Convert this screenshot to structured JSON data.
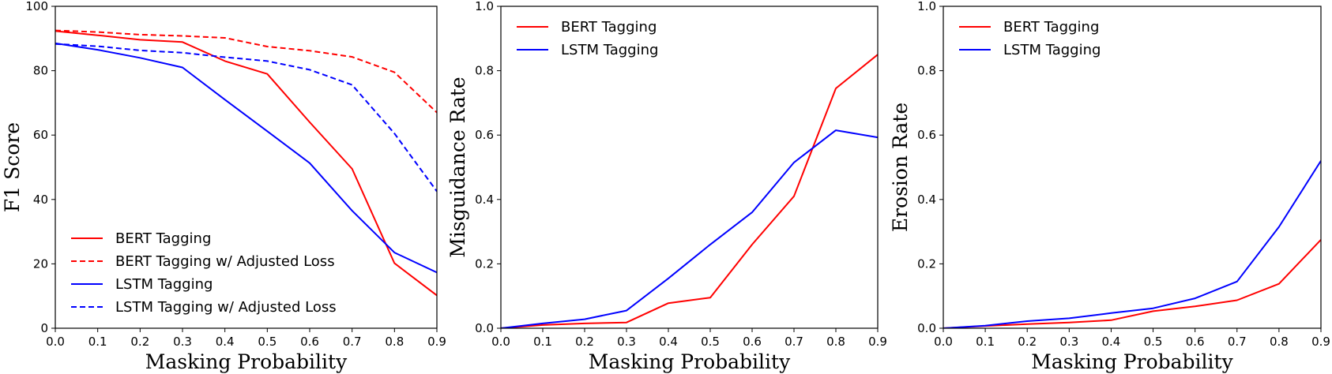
{
  "chart_data": [
    {
      "type": "line",
      "x": [
        0.0,
        0.1,
        0.2,
        0.3,
        0.4,
        0.5,
        0.6,
        0.7,
        0.8,
        0.9
      ],
      "xlabel": "Masking Probability",
      "ylabel": "F1 Score",
      "xlim": [
        0.0,
        0.9
      ],
      "ylim": [
        0,
        100
      ],
      "xticks": [
        "0.0",
        "0.1",
        "0.2",
        "0.3",
        "0.4",
        "0.5",
        "0.6",
        "0.7",
        "0.8",
        "0.9"
      ],
      "yticks": [
        "0",
        "20",
        "40",
        "60",
        "80",
        "100"
      ],
      "grid": false,
      "legend": "lower-left",
      "series": [
        {
          "name": "BERT Tagging",
          "color": "#ff0000",
          "dash": "solid",
          "values": [
            92.3,
            91.0,
            89.6,
            88.9,
            83.0,
            79.0,
            64.0,
            49.5,
            20.2,
            10.2
          ]
        },
        {
          "name": "BERT Tagging w/ Adjusted Loss",
          "color": "#ff0000",
          "dash": "dashed",
          "values": [
            92.5,
            92.0,
            91.2,
            90.8,
            90.2,
            87.5,
            86.2,
            84.3,
            79.5,
            67.0
          ]
        },
        {
          "name": "LSTM Tagging",
          "color": "#0000ff",
          "dash": "solid",
          "values": [
            88.5,
            86.5,
            84.0,
            81.0,
            71.0,
            61.2,
            51.3,
            36.5,
            23.5,
            17.3
          ]
        },
        {
          "name": "LSTM Tagging w/ Adjusted Loss",
          "color": "#0000ff",
          "dash": "dashed",
          "values": [
            88.3,
            87.6,
            86.3,
            85.6,
            84.2,
            83.0,
            80.3,
            75.6,
            60.5,
            42.5
          ]
        }
      ]
    },
    {
      "type": "line",
      "x": [
        0.0,
        0.1,
        0.2,
        0.3,
        0.4,
        0.5,
        0.6,
        0.7,
        0.8,
        0.9
      ],
      "xlabel": "Masking Probability",
      "ylabel": "Misguidance Rate",
      "xlim": [
        0.0,
        0.9
      ],
      "ylim": [
        0.0,
        1.0
      ],
      "xticks": [
        "0.0",
        "0.1",
        "0.2",
        "0.3",
        "0.4",
        "0.5",
        "0.6",
        "0.7",
        "0.8",
        "0.9"
      ],
      "yticks": [
        "0.0",
        "0.2",
        "0.4",
        "0.6",
        "0.8",
        "1.0"
      ],
      "grid": false,
      "legend": "top-left",
      "series": [
        {
          "name": "BERT Tagging",
          "color": "#ff0000",
          "dash": "solid",
          "values": [
            0.0,
            0.01,
            0.015,
            0.018,
            0.078,
            0.095,
            0.26,
            0.41,
            0.745,
            0.85
          ]
        },
        {
          "name": "LSTM Tagging",
          "color": "#0000ff",
          "dash": "solid",
          "values": [
            0.0,
            0.015,
            0.028,
            0.055,
            0.155,
            0.26,
            0.36,
            0.515,
            0.615,
            0.593
          ]
        }
      ]
    },
    {
      "type": "line",
      "x": [
        0.0,
        0.1,
        0.2,
        0.3,
        0.4,
        0.5,
        0.6,
        0.7,
        0.8,
        0.9
      ],
      "xlabel": "Masking Probability",
      "ylabel": "Erosion Rate",
      "xlim": [
        0.0,
        0.9
      ],
      "ylim": [
        0.0,
        1.0
      ],
      "xticks": [
        "0.0",
        "0.1",
        "0.2",
        "0.3",
        "0.4",
        "0.5",
        "0.6",
        "0.7",
        "0.8",
        "0.9"
      ],
      "yticks": [
        "0.0",
        "0.2",
        "0.4",
        "0.6",
        "0.8",
        "1.0"
      ],
      "grid": false,
      "legend": "top-left",
      "series": [
        {
          "name": "BERT Tagging",
          "color": "#ff0000",
          "dash": "solid",
          "values": [
            0.0,
            0.007,
            0.013,
            0.018,
            0.025,
            0.053,
            0.068,
            0.087,
            0.138,
            0.275
          ]
        },
        {
          "name": "LSTM Tagging",
          "color": "#0000ff",
          "dash": "solid",
          "values": [
            0.0,
            0.008,
            0.022,
            0.031,
            0.047,
            0.062,
            0.093,
            0.145,
            0.315,
            0.52
          ]
        }
      ]
    }
  ]
}
